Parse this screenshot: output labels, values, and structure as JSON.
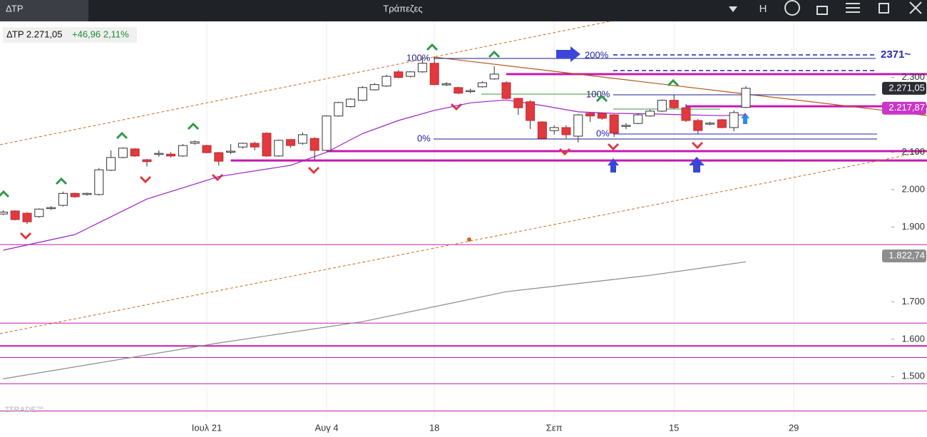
{
  "window": {
    "tab": "ΔΤΡ",
    "title": "Τράπεζες",
    "menu_letter": "H"
  },
  "quote": {
    "symbol_price": "ΔΤΡ 2.271,05",
    "change": "+46,96 2,11%"
  },
  "watermark": "ZTRADE™",
  "chart_data": {
    "type": "candlestick",
    "categories": [
      null,
      null,
      null,
      null,
      null,
      null,
      null,
      null,
      null,
      null,
      null,
      null,
      null,
      null,
      null,
      null,
      null,
      "Ιουλ 21",
      null,
      null,
      null,
      null,
      null,
      null,
      null,
      null,
      null,
      "Αυγ 4",
      null,
      null,
      null,
      null,
      null,
      null,
      null,
      null,
      "18",
      null,
      null,
      null,
      null,
      null,
      null,
      null,
      null,
      null,
      "Σεπ",
      null,
      null,
      null,
      null,
      null,
      null,
      null,
      null,
      null,
      "15",
      null,
      null,
      null,
      null,
      null,
      null,
      null,
      null,
      null,
      "29"
    ],
    "open": [
      1935,
      1943,
      1937,
      1928,
      1950,
      1958,
      1990,
      1987,
      1987,
      2052,
      2086,
      2109,
      2080,
      2095,
      2095,
      2090,
      2124,
      2118,
      2099,
      2101,
      2114,
      2124,
      2151,
      2090,
      2134,
      2124,
      2137,
      2105,
      2197,
      2222,
      2239,
      2267,
      2277,
      2315,
      2303,
      2315,
      2338,
      2281,
      2273,
      2262,
      2275,
      2296,
      2286,
      2244,
      2235,
      2181,
      2158,
      2166,
      2143,
      2204,
      2204,
      2200,
      2170,
      2177,
      2197,
      2210,
      2239,
      2219,
      2185,
      2176,
      2187,
      2166,
      2220,
      null,
      null,
      null,
      null
    ],
    "high": [
      1945,
      1945,
      1940,
      1950,
      1956,
      1995,
      1992,
      1992,
      2058,
      2105,
      2113,
      2111,
      2082,
      2105,
      2100,
      2122,
      2132,
      2120,
      2101,
      2122,
      2126,
      2128,
      2153,
      2134,
      2136,
      2153,
      2140,
      2199,
      2235,
      2244,
      2277,
      2285,
      2307,
      2320,
      2317,
      2355,
      2355,
      2288,
      2275,
      2270,
      2290,
      2330,
      2290,
      2246,
      2239,
      2183,
      2172,
      2172,
      2202,
      2206,
      2206,
      2202,
      2178,
      2204,
      2214,
      2241,
      2254,
      2229,
      2189,
      2181,
      2189,
      2212,
      2277,
      null,
      null,
      null,
      null
    ],
    "low": [
      1932,
      1918,
      1908,
      1925,
      1946,
      1955,
      1978,
      1984,
      1984,
      2050,
      2084,
      2088,
      2062,
      2088,
      2086,
      2088,
      2120,
      2097,
      2064,
      2095,
      2110,
      2105,
      2088,
      2088,
      2112,
      2120,
      2080,
      2103,
      2195,
      2220,
      2237,
      2265,
      2275,
      2298,
      2300,
      2313,
      2279,
      2277,
      2256,
      2258,
      2273,
      2294,
      2242,
      2200,
      2162,
      2135,
      2147,
      2137,
      2126,
      2181,
      2187,
      2141,
      2162,
      2175,
      2195,
      2208,
      2216,
      2181,
      2149,
      2172,
      2164,
      2156,
      2218,
      null,
      null,
      null,
      null
    ],
    "close": [
      1940,
      1920,
      1914,
      1948,
      1952,
      1990,
      1981,
      1990,
      2053,
      2086,
      2111,
      2090,
      2075,
      2097,
      2090,
      2118,
      2128,
      2099,
      2076,
      2103,
      2124,
      2114,
      2090,
      2132,
      2118,
      2147,
      2105,
      2197,
      2233,
      2242,
      2273,
      2281,
      2303,
      2300,
      2315,
      2338,
      2281,
      2283,
      2258,
      2265,
      2286,
      2309,
      2244,
      2219,
      2185,
      2137,
      2166,
      2147,
      2200,
      2197,
      2191,
      2151,
      2172,
      2200,
      2210,
      2239,
      2219,
      2185,
      2158,
      2178,
      2166,
      2206,
      2271.05,
      null,
      null,
      null,
      null
    ],
    "up_color": "#ffffff",
    "down_color": "#e0393e",
    "ylim": [
      1390,
      2450
    ],
    "yticks": [
      {
        "value": 1500,
        "label": "1.500"
      },
      {
        "value": 1600,
        "label": "1.600"
      },
      {
        "value": 1700,
        "label": "1.700"
      },
      {
        "value": 1900,
        "label": "1.900"
      },
      {
        "value": 2000,
        "label": "2.000"
      },
      {
        "value": 2100,
        "label": "2.100"
      },
      {
        "value": 2300,
        "label": "2.300"
      }
    ],
    "moving_averages": [
      {
        "color": "#a020c8",
        "x": [
          0,
          6,
          12,
          18,
          24,
          27,
          30,
          33,
          36,
          39,
          42,
          45,
          48,
          51,
          54,
          57,
          60,
          62
        ],
        "values": [
          1838,
          1880,
          1975,
          2035,
          2065,
          2100,
          2150,
          2185,
          2212,
          2232,
          2240,
          2225,
          2208,
          2204,
          2203,
          2200,
          2198,
          2200
        ]
      },
      {
        "color": "#8a8a8a",
        "x": [
          0,
          18,
          30,
          42,
          54,
          62
        ],
        "values": [
          1494,
          1590,
          1647,
          1727,
          1771,
          1807
        ]
      }
    ],
    "levels": [
      {
        "value": 1853,
        "from": 0,
        "width": 1
      },
      {
        "value": 1643,
        "from": 0,
        "width": 1
      },
      {
        "value": 1582,
        "from": 0,
        "width": 2
      },
      {
        "value": 1551,
        "from": 0,
        "width": 1
      },
      {
        "value": 1481,
        "from": 0,
        "width": 1
      },
      {
        "value": 1408,
        "from": 0,
        "width": 1
      },
      {
        "value": 2103,
        "from": 27,
        "width": 3
      },
      {
        "value": 2078,
        "from": 19,
        "width": 3
      },
      {
        "value": 2309,
        "from": 42,
        "width": 3
      },
      {
        "value": 2223,
        "from": 57,
        "width": 3
      }
    ],
    "level_color": "#c41ab4",
    "price_labels": [
      {
        "value": 2271.05,
        "label": "2.271,05",
        "color": "#2a2d33"
      },
      {
        "value": 2217.87,
        "label": "2.217,87",
        "color": "#c837c8"
      },
      {
        "value": 1822.74,
        "label": "1.822,74",
        "color": "#8d8d8d"
      }
    ],
    "annotations": [
      "100%",
      "200%",
      "0%",
      "100%",
      "0%",
      "2371~"
    ]
  }
}
